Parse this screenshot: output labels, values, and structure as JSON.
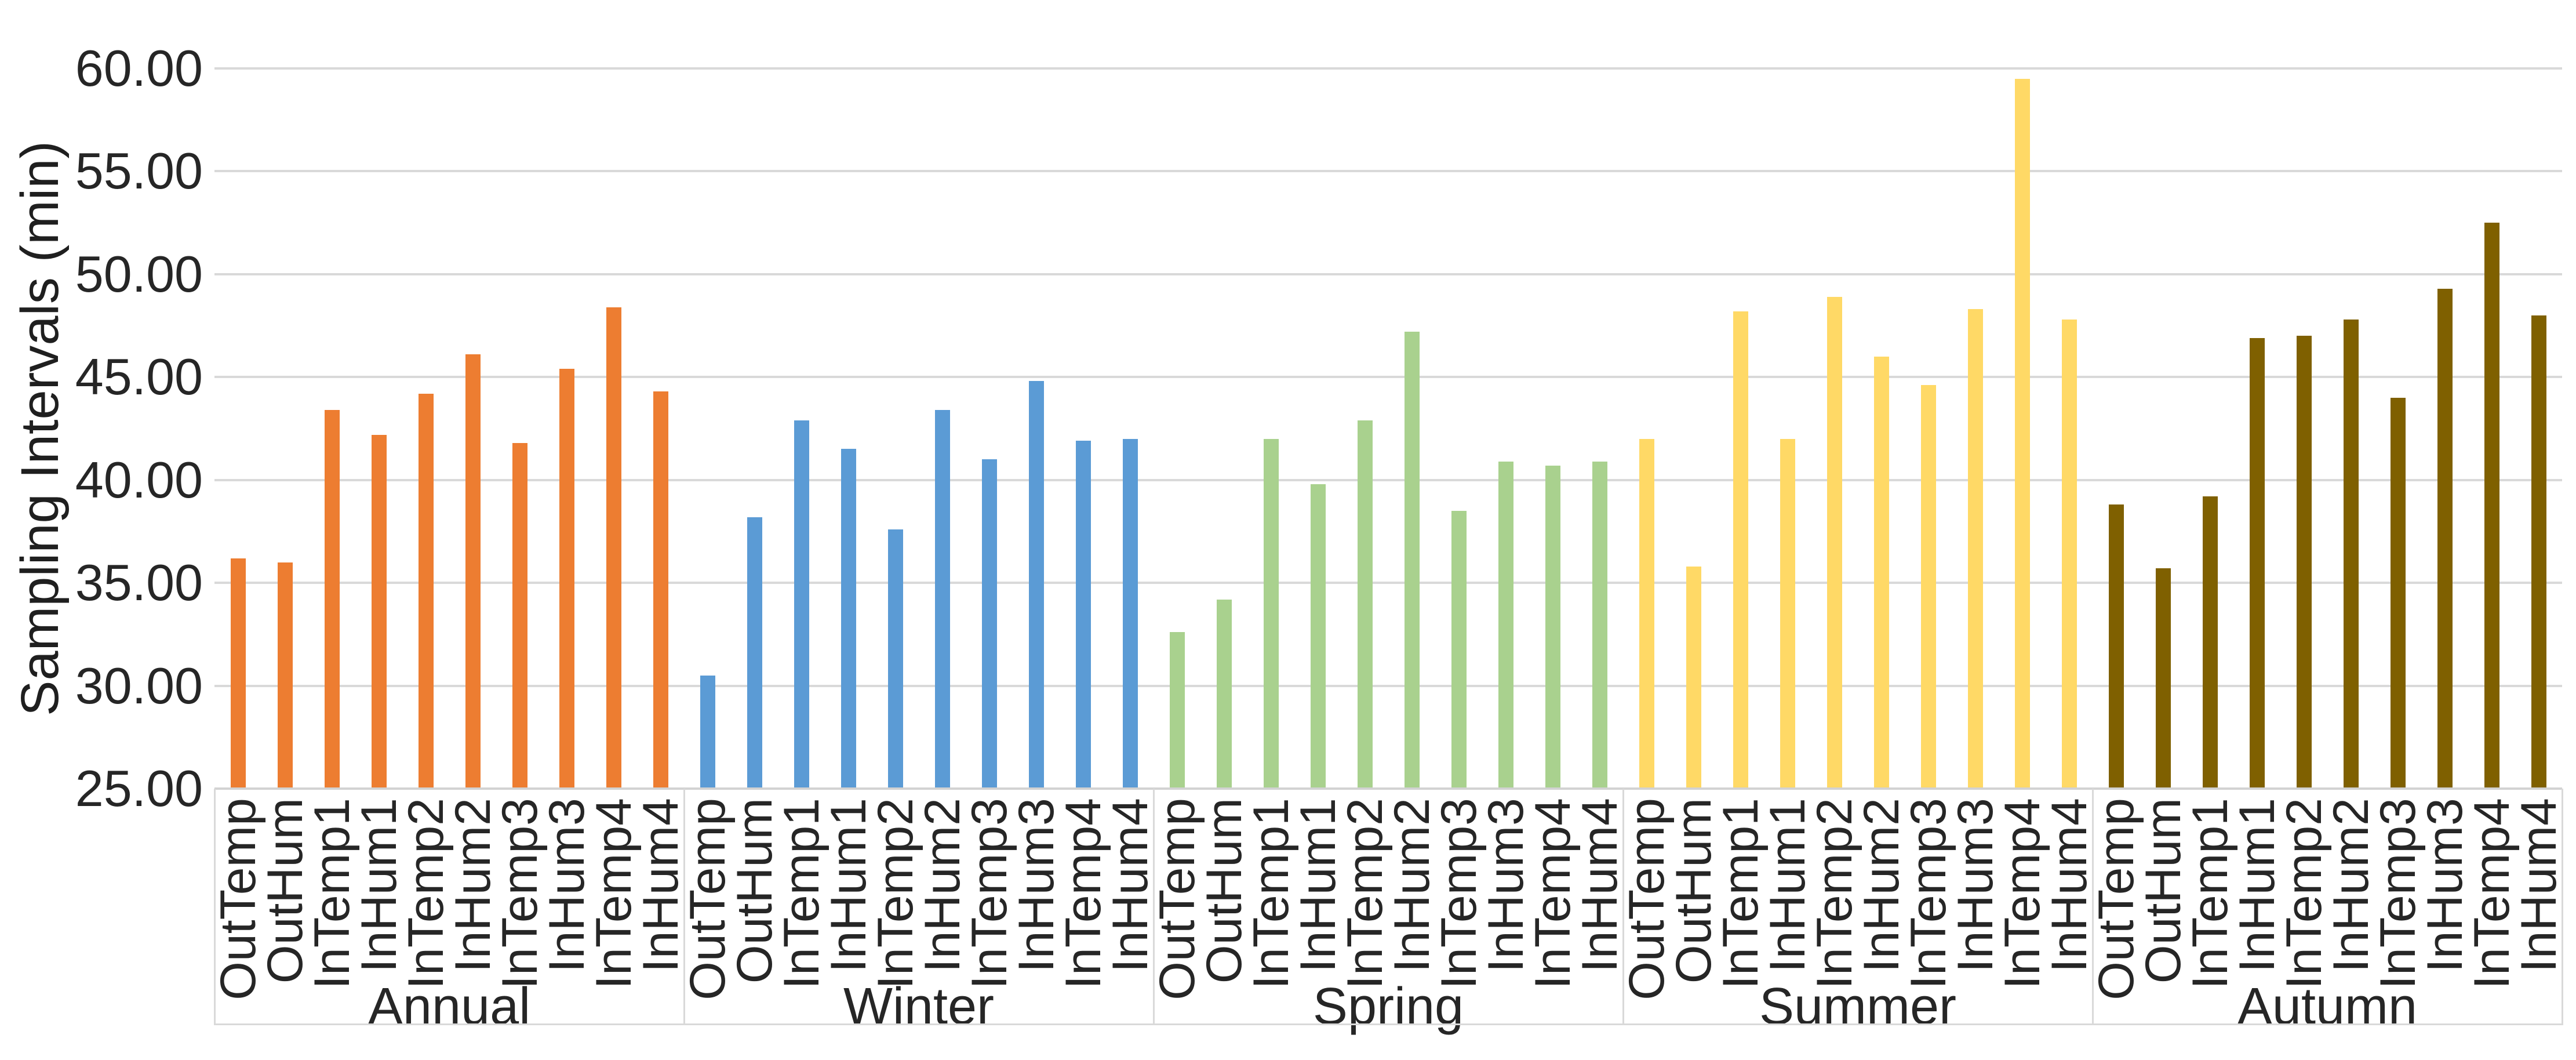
{
  "styles": {
    "background": "#ffffff",
    "gridline_color": "#d9d9d9",
    "axis_line_color": "#d2d2d2",
    "text_color": "#262626"
  },
  "chart_data": {
    "type": "bar",
    "title": "",
    "xlabel": "",
    "ylabel": "Sampling Intervals (min)",
    "ylim": [
      25,
      60
    ],
    "ytick_step": 5,
    "ytick_labels": [
      "60.00",
      "55.00",
      "50.00",
      "45.00",
      "40.00",
      "35.00",
      "30.00",
      "25.00"
    ],
    "grid": true,
    "legend": false,
    "categories": [
      "OutTemp",
      "OutHum",
      "InTemp1",
      "InHum1",
      "InTemp2",
      "InHum2",
      "InTemp3",
      "InHum3",
      "InTemp4",
      "InHum4"
    ],
    "groups": [
      {
        "name": "Annual",
        "color": "#ED7D31",
        "values": [
          36.2,
          36.0,
          43.4,
          42.2,
          44.2,
          46.1,
          41.8,
          45.4,
          48.4,
          44.3
        ]
      },
      {
        "name": "Winter",
        "color": "#5B9BD5",
        "values": [
          30.5,
          38.2,
          42.9,
          41.5,
          37.6,
          43.4,
          41.0,
          44.8,
          41.9,
          42.0
        ]
      },
      {
        "name": "Spring",
        "color": "#A9D18E",
        "values": [
          32.6,
          34.2,
          42.0,
          39.8,
          42.9,
          47.2,
          38.5,
          40.9,
          40.7,
          40.9
        ]
      },
      {
        "name": "Summer",
        "color": "#FFD966",
        "values": [
          42.0,
          35.8,
          48.2,
          42.0,
          48.9,
          46.0,
          44.6,
          48.3,
          59.5,
          47.8
        ]
      },
      {
        "name": "Autumn",
        "color": "#7F6000",
        "values": [
          38.8,
          35.7,
          39.2,
          46.9,
          47.0,
          47.8,
          44.0,
          49.3,
          52.5,
          48.0
        ]
      }
    ]
  }
}
